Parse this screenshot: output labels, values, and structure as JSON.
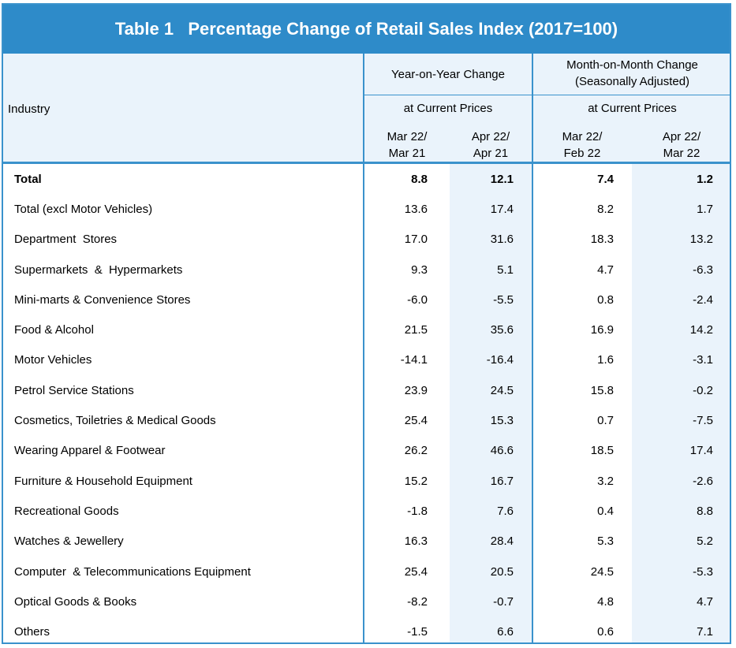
{
  "table": {
    "title": "Table 1   Percentage Change of Retail Sales Index (2017=100)",
    "header": {
      "industry": "Industry",
      "yoy_group": "Year-on-Year Change",
      "mom_group_line1": "Month-on-Month Change",
      "mom_group_line2": "(Seasonally Adjusted)",
      "yoy_prices": "at Current Prices",
      "mom_prices": "at Current Prices",
      "columns": [
        {
          "line1": "Mar 22/",
          "line2": "Mar 21"
        },
        {
          "line1": "Apr 22/",
          "line2": "Apr 21"
        },
        {
          "line1": "Mar 22/",
          "line2": "Feb 22"
        },
        {
          "line1": "Apr 22/",
          "line2": "Mar 22"
        }
      ]
    },
    "rows": [
      {
        "industry": "Total",
        "values": [
          "8.8",
          "12.1",
          "7.4",
          "1.2"
        ]
      },
      {
        "industry": "Total (excl Motor Vehicles)",
        "values": [
          "13.6",
          "17.4",
          "8.2",
          "1.7"
        ]
      },
      {
        "industry": "Department  Stores",
        "values": [
          "17.0",
          "31.6",
          "18.3",
          "13.2"
        ]
      },
      {
        "industry": "Supermarkets  &  Hypermarkets",
        "values": [
          "9.3",
          "5.1",
          "4.7",
          "-6.3"
        ]
      },
      {
        "industry": "Mini-marts & Convenience Stores",
        "values": [
          "-6.0",
          "-5.5",
          "0.8",
          "-2.4"
        ]
      },
      {
        "industry": "Food & Alcohol",
        "values": [
          "21.5",
          "35.6",
          "16.9",
          "14.2"
        ]
      },
      {
        "industry": "Motor Vehicles",
        "values": [
          "-14.1",
          "-16.4",
          "1.6",
          "-3.1"
        ]
      },
      {
        "industry": "Petrol Service Stations",
        "values": [
          "23.9",
          "24.5",
          "15.8",
          "-0.2"
        ]
      },
      {
        "industry": "Cosmetics, Toiletries & Medical Goods",
        "values": [
          "25.4",
          "15.3",
          "0.7",
          "-7.5"
        ]
      },
      {
        "industry": "Wearing Apparel & Footwear",
        "values": [
          "26.2",
          "46.6",
          "18.5",
          "17.4"
        ]
      },
      {
        "industry": "Furniture & Household Equipment",
        "values": [
          "15.2",
          "16.7",
          "3.2",
          "-2.6"
        ]
      },
      {
        "industry": "Recreational Goods",
        "values": [
          "-1.8",
          "7.6",
          "0.4",
          "8.8"
        ]
      },
      {
        "industry": "Watches & Jewellery",
        "values": [
          "16.3",
          "28.4",
          "5.3",
          "5.2"
        ]
      },
      {
        "industry": "Computer  & Telecommunications Equipment",
        "values": [
          "25.4",
          "20.5",
          "24.5",
          "-5.3"
        ]
      },
      {
        "industry": "Optical Goods & Books",
        "values": [
          "-8.2",
          "-0.7",
          "4.8",
          "4.7"
        ]
      },
      {
        "industry": "Others",
        "values": [
          "-1.5",
          "6.6",
          "0.6",
          "7.1"
        ]
      }
    ]
  }
}
